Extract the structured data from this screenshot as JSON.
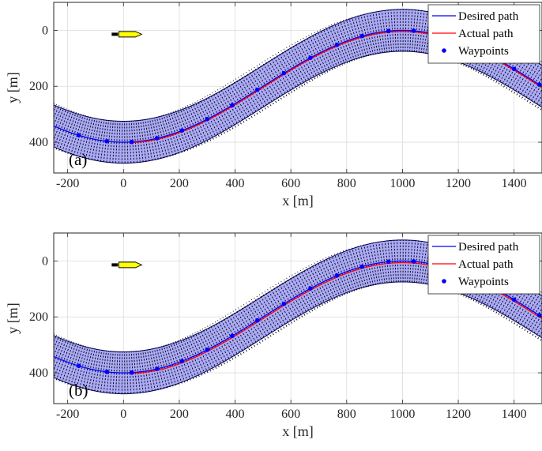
{
  "chart_data": [
    {
      "type": "line",
      "panel_label": "(a)",
      "xlabel": "x [m]",
      "ylabel": "y [m]",
      "xlim": [
        -250,
        1500
      ],
      "ylim": [
        510,
        -100
      ],
      "y_axis_reversed": true,
      "xticks": [
        -200,
        0,
        200,
        400,
        600,
        800,
        1000,
        1200,
        1400
      ],
      "yticks": [
        0,
        200,
        400
      ],
      "xtick_labels": [
        "-200",
        "0",
        "200",
        "400",
        "600",
        "800",
        "1000",
        "1200",
        "1400"
      ],
      "ytick_labels": [
        "0",
        "200",
        "400"
      ],
      "grid": true,
      "legend_position": "top-right",
      "corridor_half_width": 75,
      "series": [
        {
          "name": "Desired path",
          "kind": "line",
          "color": "#0000ff",
          "function": "y = 200 - 200*cos(pi*(x-1000)/1000)"
        },
        {
          "name": "Actual path",
          "kind": "line",
          "color": "#ff0000",
          "offset": 4
        },
        {
          "name": "Waypoints",
          "kind": "marker",
          "color": "#0000ff",
          "x": [
            -160,
            -60,
            30,
            120,
            210,
            300,
            390,
            480,
            575,
            670,
            765,
            855,
            950,
            1040,
            1130,
            1220,
            1310,
            1400,
            1490
          ]
        }
      ],
      "vessel": {
        "x": 20,
        "y": 14,
        "heading": 0,
        "color": "#ffff00"
      }
    },
    {
      "type": "line",
      "panel_label": "(b)",
      "xlabel": "x [m]",
      "ylabel": "y [m]",
      "xlim": [
        -250,
        1500
      ],
      "ylim": [
        510,
        -100
      ],
      "y_axis_reversed": true,
      "xticks": [
        -200,
        0,
        200,
        400,
        600,
        800,
        1000,
        1200,
        1400
      ],
      "yticks": [
        0,
        200,
        400
      ],
      "xtick_labels": [
        "-200",
        "0",
        "200",
        "400",
        "600",
        "800",
        "1000",
        "1200",
        "1400"
      ],
      "ytick_labels": [
        "0",
        "200",
        "400"
      ],
      "grid": true,
      "legend_position": "top-right",
      "corridor_half_width": 75,
      "series": [
        {
          "name": "Desired path",
          "kind": "line",
          "color": "#0000ff",
          "function": "y = 200 - 200*cos(pi*(x-1000)/1000)"
        },
        {
          "name": "Actual path",
          "kind": "line",
          "color": "#ff0000",
          "offset": 6
        },
        {
          "name": "Waypoints",
          "kind": "marker",
          "color": "#0000ff",
          "x": [
            -160,
            -60,
            30,
            120,
            210,
            300,
            390,
            480,
            575,
            670,
            765,
            855,
            950,
            1040,
            1130,
            1220,
            1310,
            1400,
            1490
          ]
        }
      ],
      "vessel": {
        "x": 20,
        "y": 14,
        "heading": 0,
        "color": "#ffff00"
      }
    }
  ]
}
